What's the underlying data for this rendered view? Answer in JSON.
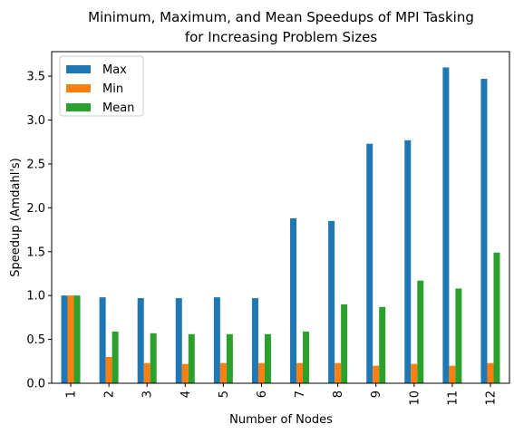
{
  "chart_data": {
    "type": "bar",
    "title_lines": [
      "Minimum, Maximum, and Mean Speedups of MPI Tasking",
      "for Increasing Problem Sizes"
    ],
    "xlabel": "Number of Nodes",
    "ylabel": "Speedup (Amdahl's)",
    "categories": [
      "1",
      "2",
      "3",
      "4",
      "5",
      "6",
      "7",
      "8",
      "9",
      "10",
      "11",
      "12"
    ],
    "ylim": [
      0,
      3.78
    ],
    "yticks": [
      0.0,
      0.5,
      1.0,
      1.5,
      2.0,
      2.5,
      3.0,
      3.5
    ],
    "ytick_labels": [
      "0.0",
      "0.5",
      "1.0",
      "1.5",
      "2.0",
      "2.5",
      "3.0",
      "3.5"
    ],
    "grid": false,
    "legend_position": "top-left",
    "series": [
      {
        "name": "Max",
        "color": "#1f77b4",
        "values": [
          1.0,
          0.98,
          0.97,
          0.97,
          0.98,
          0.97,
          1.88,
          1.85,
          2.73,
          2.77,
          3.6,
          3.47
        ]
      },
      {
        "name": "Min",
        "color": "#ff7f0e",
        "values": [
          1.0,
          0.3,
          0.23,
          0.22,
          0.23,
          0.23,
          0.23,
          0.23,
          0.2,
          0.22,
          0.2,
          0.23
        ]
      },
      {
        "name": "Mean",
        "color": "#2ca02c",
        "values": [
          1.0,
          0.59,
          0.57,
          0.56,
          0.56,
          0.56,
          0.59,
          0.9,
          0.87,
          1.17,
          1.08,
          1.49
        ]
      }
    ]
  }
}
